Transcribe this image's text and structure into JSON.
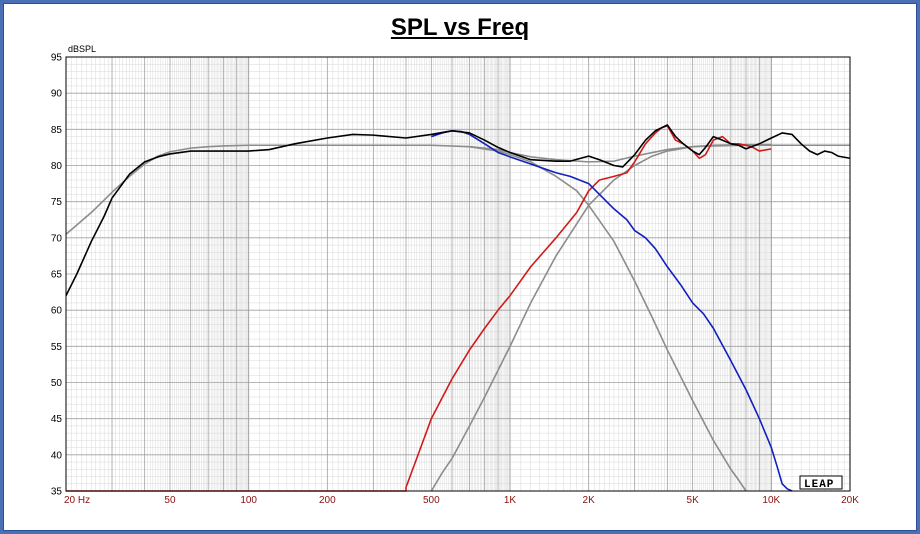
{
  "chart_data": {
    "type": "line",
    "title": "SPL vs Freq",
    "ylabel": "dBSPL",
    "xlabel": "",
    "xscale": "log",
    "xlim": [
      20,
      20000
    ],
    "ylim": [
      35,
      95
    ],
    "grid": true,
    "y_ticks": [
      "35",
      "40",
      "45",
      "50",
      "55",
      "60",
      "65",
      "70",
      "75",
      "80",
      "85",
      "90",
      "95"
    ],
    "y_tick_values": [
      35,
      40,
      45,
      50,
      55,
      60,
      65,
      70,
      75,
      80,
      85,
      90,
      95
    ],
    "x_ticks": [
      {
        "label": "20  Hz",
        "value": 20
      },
      {
        "label": "50",
        "value": 50
      },
      {
        "label": "100",
        "value": 100
      },
      {
        "label": "200",
        "value": 200
      },
      {
        "label": "500",
        "value": 500
      },
      {
        "label": "1K",
        "value": 1000
      },
      {
        "label": "2K",
        "value": 2000
      },
      {
        "label": "5K",
        "value": 5000
      },
      {
        "label": "10K",
        "value": 10000
      },
      {
        "label": "20K",
        "value": 20000
      }
    ],
    "logo_text": "LEAP",
    "series": [
      {
        "key": "target-sum",
        "color": "#8c8c8c",
        "x": [
          20,
          25,
          30,
          35,
          40,
          45,
          50,
          60,
          70,
          80,
          100,
          150,
          200,
          300,
          500,
          700,
          900,
          1000,
          1200,
          1500,
          2000,
          2500,
          3000,
          4000,
          5000,
          6000,
          8000,
          10000,
          15000,
          20000
        ],
        "y": [
          70.5,
          73.5,
          76.3,
          78.5,
          80.2,
          81.3,
          81.9,
          82.4,
          82.6,
          82.7,
          82.8,
          82.8,
          82.8,
          82.8,
          82.8,
          82.6,
          82.2,
          81.8,
          81.2,
          80.8,
          80.5,
          80.6,
          81.3,
          82.2,
          82.6,
          82.7,
          82.8,
          82.8,
          82.8,
          82.8
        ]
      },
      {
        "key": "target-lowpass",
        "color": "#8c8c8c",
        "x": [
          700,
          900,
          1000,
          1200,
          1500,
          1800,
          2000,
          2500,
          3000,
          3500,
          4000,
          5000,
          6000,
          7000,
          7500,
          8000
        ],
        "y": [
          82.6,
          82.0,
          81.5,
          80.5,
          78.5,
          76.5,
          74.5,
          69.5,
          64.0,
          59.0,
          54.5,
          47.5,
          42.0,
          38.0,
          36.5,
          35
        ]
      },
      {
        "key": "target-highpass",
        "color": "#8c8c8c",
        "x": [
          500,
          550,
          600,
          700,
          800,
          1000,
          1200,
          1500,
          2000,
          2500,
          3000,
          3500,
          4000,
          5000,
          6000,
          8000,
          10000
        ],
        "y": [
          35,
          37.5,
          39.5,
          44.0,
          48.0,
          55.0,
          61.0,
          67.5,
          74.5,
          78.0,
          80.0,
          81.3,
          82.0,
          82.6,
          82.8,
          82.9,
          82.9
        ]
      },
      {
        "key": "measured-tweeter",
        "color": "#d11a1a",
        "x": [
          20,
          400,
          400,
          450,
          500,
          600,
          700,
          800,
          900,
          1000,
          1200,
          1500,
          1800,
          2000,
          2200,
          2500,
          2800,
          3000,
          3300,
          3600,
          3800,
          4000,
          4300,
          4600,
          5000,
          5300,
          5600,
          6000,
          6500,
          7000,
          7500,
          8000,
          8500,
          9000,
          10000
        ],
        "y": [
          35,
          35,
          35.5,
          40.5,
          45.0,
          50.5,
          54.5,
          57.5,
          60.0,
          62.0,
          66.0,
          70.0,
          73.5,
          76.5,
          78.0,
          78.5,
          79.0,
          80.5,
          83.0,
          84.5,
          85.2,
          85.5,
          83.5,
          83.0,
          82.0,
          81.0,
          81.5,
          83.5,
          84.0,
          83.0,
          83.0,
          82.8,
          82.5,
          82.0,
          82.3
        ]
      },
      {
        "key": "measured-woofer",
        "color": "#1020c0",
        "x": [
          500,
          550,
          600,
          650,
          700,
          800,
          900,
          1000,
          1200,
          1500,
          1700,
          2000,
          2200,
          2500,
          2800,
          3000,
          3300,
          3600,
          4000,
          4500,
          5000,
          5500,
          6000,
          7000,
          8000,
          9000,
          10000,
          10500,
          11000,
          11500,
          12000
        ],
        "y": [
          84.0,
          84.5,
          84.8,
          84.7,
          84.3,
          83.0,
          81.8,
          81.2,
          80.2,
          79.0,
          78.5,
          77.5,
          76.0,
          74.0,
          72.5,
          71.0,
          70.0,
          68.5,
          66.0,
          63.5,
          61.0,
          59.5,
          57.5,
          53.0,
          49.0,
          45.0,
          41.0,
          38.5,
          36.0,
          35.3,
          35
        ]
      },
      {
        "key": "measured-sum",
        "color": "#000000",
        "x": [
          20,
          22,
          25,
          28,
          30,
          35,
          40,
          45,
          50,
          60,
          70,
          80,
          100,
          120,
          150,
          200,
          250,
          300,
          400,
          500,
          600,
          700,
          800,
          900,
          1000,
          1200,
          1500,
          1700,
          2000,
          2200,
          2500,
          2700,
          3000,
          3300,
          3600,
          4000,
          4300,
          4600,
          5000,
          5300,
          5600,
          6000,
          6500,
          7000,
          7500,
          8000,
          9000,
          10000,
          11000,
          12000,
          13000,
          14000,
          15000,
          16000,
          17000,
          18000,
          20000
        ],
        "y": [
          62.0,
          65.0,
          69.5,
          73.0,
          75.5,
          78.8,
          80.5,
          81.2,
          81.6,
          82.0,
          82.0,
          82.0,
          82.0,
          82.2,
          83.0,
          83.8,
          84.3,
          84.2,
          83.8,
          84.3,
          84.8,
          84.5,
          83.5,
          82.5,
          81.8,
          80.8,
          80.6,
          80.6,
          81.3,
          80.8,
          80.0,
          79.8,
          81.5,
          83.5,
          84.8,
          85.6,
          84.0,
          83.0,
          82.0,
          81.5,
          82.5,
          84.0,
          83.5,
          83.0,
          82.8,
          82.3,
          83.0,
          83.8,
          84.5,
          84.3,
          83.0,
          82.0,
          81.5,
          82.0,
          81.8,
          81.3,
          81.0
        ]
      }
    ]
  }
}
